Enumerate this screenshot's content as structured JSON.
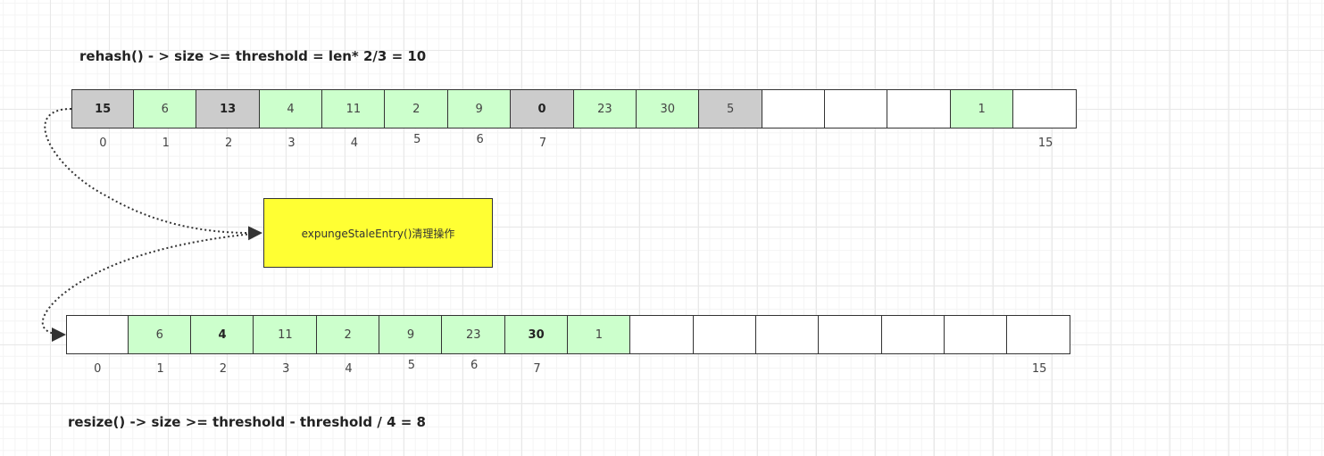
{
  "top_label": "rehash() - > size >= threshold = len* 2/3 = 10",
  "bottom_label": "resize() -> size >= threshold - threshold / 4 = 8",
  "process_box": "expungeStaleEntry()清理操作",
  "colors": {
    "stale": "#cccccc",
    "live": "#ccffcc",
    "empty": "#ffffff",
    "box": "#ffff33"
  },
  "top_array": [
    {
      "v": "15",
      "s": "stale",
      "bold": true
    },
    {
      "v": "6",
      "s": "live"
    },
    {
      "v": "13",
      "s": "stale",
      "bold": true
    },
    {
      "v": "4",
      "s": "live"
    },
    {
      "v": "11",
      "s": "live"
    },
    {
      "v": "2",
      "s": "live"
    },
    {
      "v": "9",
      "s": "live"
    },
    {
      "v": "0",
      "s": "stale",
      "bold": true
    },
    {
      "v": "23",
      "s": "live"
    },
    {
      "v": "30",
      "s": "live"
    },
    {
      "v": "5",
      "s": "stale"
    },
    {
      "v": "",
      "s": "empty"
    },
    {
      "v": "",
      "s": "empty"
    },
    {
      "v": "",
      "s": "empty"
    },
    {
      "v": "1",
      "s": "live"
    },
    {
      "v": "",
      "s": "empty"
    }
  ],
  "bottom_array": [
    {
      "v": "",
      "s": "empty"
    },
    {
      "v": "6",
      "s": "live"
    },
    {
      "v": "4",
      "s": "live",
      "bold": true
    },
    {
      "v": "11",
      "s": "live"
    },
    {
      "v": "2",
      "s": "live"
    },
    {
      "v": "9",
      "s": "live"
    },
    {
      "v": "23",
      "s": "live"
    },
    {
      "v": "30",
      "s": "live",
      "bold": true
    },
    {
      "v": "1",
      "s": "live"
    },
    {
      "v": "",
      "s": "empty"
    },
    {
      "v": "",
      "s": "empty"
    },
    {
      "v": "",
      "s": "empty"
    },
    {
      "v": "",
      "s": "empty"
    },
    {
      "v": "",
      "s": "empty"
    },
    {
      "v": "",
      "s": "empty"
    },
    {
      "v": "",
      "s": "empty"
    }
  ],
  "index_labels": [
    {
      "i": 0,
      "t": "0"
    },
    {
      "i": 1,
      "t": "1"
    },
    {
      "i": 2,
      "t": "2"
    },
    {
      "i": 3,
      "t": "3"
    },
    {
      "i": 4,
      "t": "4"
    },
    {
      "i": 5,
      "t": "5"
    },
    {
      "i": 6,
      "t": "6"
    },
    {
      "i": 7,
      "t": "7"
    },
    {
      "i": 15,
      "t": "15"
    }
  ]
}
